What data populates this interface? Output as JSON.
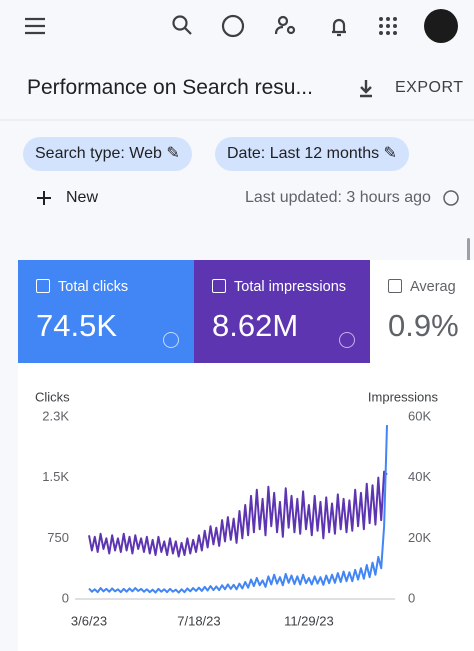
{
  "header": {
    "title": "Performance on Search resu...",
    "export": "EXPORT"
  },
  "filters": [
    "Search type: Web",
    "Date: Last 12 months"
  ],
  "new_button": "New",
  "last_updated": "Last updated: 3 hours ago",
  "cards": [
    {
      "label": "Total clicks",
      "value": "74.5K"
    },
    {
      "label": "Total impressions",
      "value": "8.62M"
    },
    {
      "label": "Averag",
      "value": "0.9%"
    }
  ],
  "chart_data": {
    "type": "line",
    "categories": [
      "3/6/23",
      null,
      null,
      null,
      null,
      null,
      null,
      null,
      null,
      null,
      null,
      null,
      null,
      null,
      null,
      null,
      null,
      null,
      null,
      null,
      null,
      null,
      null,
      null,
      null,
      null,
      null,
      null,
      null,
      null,
      null,
      null,
      null,
      null,
      null,
      null,
      null,
      null,
      "7/18/23",
      null,
      null,
      null,
      null,
      null,
      null,
      null,
      null,
      null,
      null,
      null,
      null,
      null,
      null,
      null,
      null,
      null,
      null,
      null,
      null,
      null,
      null,
      null,
      null,
      null,
      null,
      null,
      null,
      null,
      null,
      null,
      null,
      null,
      null,
      null,
      null,
      null,
      "11/29/23",
      null,
      null,
      null,
      null,
      null,
      null,
      null,
      null,
      null,
      null,
      null,
      null,
      null,
      null,
      null,
      null,
      null,
      null,
      null,
      null,
      null,
      null,
      null,
      null,
      null,
      null,
      null
    ],
    "ylim": [
      0,
      2250
    ],
    "yticks": [
      0,
      750,
      {
        "value": 1500,
        "label": "1.5K"
      },
      {
        "value": 2250,
        "label": "2.3K"
      }
    ],
    "y2lim": [
      0,
      60000
    ],
    "y2ticks": [
      0,
      {
        "value": 20000,
        "label": "20K"
      },
      {
        "value": 40000,
        "label": "40K"
      },
      {
        "value": 60000,
        "label": "60K"
      }
    ],
    "series": [
      {
        "name": "Clicks",
        "color": "#4285f4",
        "values": [
          130,
          90,
          120,
          85,
          135,
          95,
          125,
          90,
          130,
          95,
          120,
          85,
          125,
          90,
          130,
          95,
          135,
          100,
          125,
          90,
          120,
          85,
          115,
          80,
          125,
          90,
          120,
          85,
          125,
          90,
          115,
          80,
          120,
          85,
          130,
          95,
          135,
          100,
          140,
          100,
          150,
          105,
          160,
          110,
          155,
          110,
          170,
          120,
          180,
          125,
          175,
          120,
          190,
          130,
          210,
          140,
          240,
          160,
          260,
          170,
          230,
          150,
          280,
          180,
          300,
          190,
          270,
          170,
          310,
          200,
          290,
          185,
          280,
          180,
          300,
          195,
          260,
          180,
          280,
          190,
          270,
          175,
          290,
          195,
          300,
          200,
          320,
          210,
          340,
          220,
          330,
          220,
          360,
          240,
          380,
          250,
          420,
          270,
          450,
          300,
          520,
          380,
          900,
          2150
        ]
      },
      {
        "name": "Impressions",
        "color": "#5e35b1",
        "axis": "y2",
        "values": [
          21000,
          16000,
          20500,
          15500,
          21500,
          16500,
          20000,
          15000,
          21000,
          16000,
          20000,
          15500,
          21500,
          16000,
          20500,
          15000,
          21000,
          16500,
          20000,
          15500,
          20500,
          15000,
          19500,
          14500,
          20500,
          15500,
          19000,
          14500,
          20000,
          15000,
          19000,
          14000,
          18500,
          14500,
          20000,
          15000,
          19500,
          15500,
          21000,
          16000,
          22500,
          17000,
          24000,
          18000,
          23500,
          17500,
          26000,
          19000,
          27000,
          19500,
          26500,
          18500,
          29000,
          20000,
          31000,
          21000,
          34000,
          22000,
          36000,
          23000,
          33000,
          21000,
          37000,
          24000,
          35000,
          22000,
          32000,
          20500,
          36500,
          23500,
          34000,
          22000,
          33000,
          21500,
          35500,
          23000,
          31000,
          21000,
          34000,
          22500,
          32000,
          20000,
          33500,
          22000,
          31500,
          21500,
          34500,
          23000,
          33000,
          22000,
          32500,
          22500,
          36000,
          24000,
          35000,
          23000,
          38000,
          25000,
          37500,
          24500,
          40000,
          26000,
          42000,
          41000
        ]
      }
    ]
  }
}
